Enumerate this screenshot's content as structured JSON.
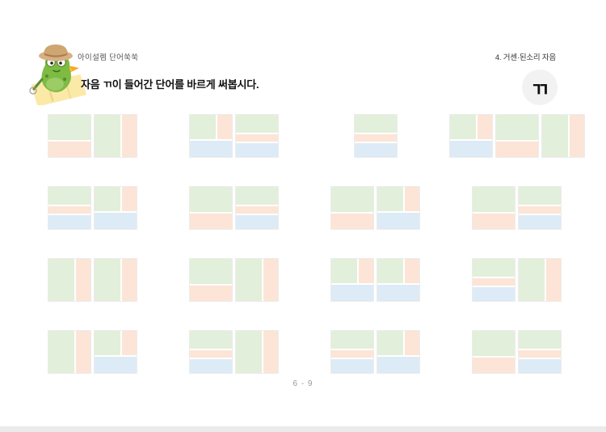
{
  "header": {
    "brand": "아이설렘 단어쑥쑥",
    "chapter": "4. 거센·된소리 자음",
    "instruction": "자음 ㄲ이 들어간 단어를 바르게 써봅시다.",
    "target_consonant": "ㄲ"
  },
  "footer": {
    "page_number": "6 - 9"
  },
  "colors": {
    "initial": "#e2efda",
    "vowel": "#fce4d6",
    "final": "#ddebf7",
    "square_border": "#ececec",
    "badge_bg": "#f2f2f2"
  },
  "grid": {
    "rows": 4,
    "cols": 4,
    "syllable_types": {
      "cv_h": "consonant top, horizontal vowel bottom",
      "cv_v": "consonant left, vertical vowel right",
      "cvc_v": "consonant left, vertical vowel right, final consonant bottom",
      "cvc_h": "consonant top, horizontal vowel middle, final consonant bottom"
    },
    "blocks": [
      {
        "row": 1,
        "col": 1,
        "syllables": [
          "cv_h",
          "cv_v"
        ]
      },
      {
        "row": 1,
        "col": 2,
        "syllables": [
          "cvc_v",
          "cvc_h"
        ]
      },
      {
        "row": 1,
        "col": 3,
        "syllables": [
          "cvc_h"
        ]
      },
      {
        "row": 1,
        "col": 4,
        "syllables": [
          "cvc_v",
          "cv_h",
          "cv_v"
        ]
      },
      {
        "row": 2,
        "col": 1,
        "syllables": [
          "cvc_h",
          "cvc_v"
        ]
      },
      {
        "row": 2,
        "col": 2,
        "syllables": [
          "cv_h",
          "cvc_h"
        ]
      },
      {
        "row": 2,
        "col": 3,
        "syllables": [
          "cv_h",
          "cvc_v"
        ]
      },
      {
        "row": 2,
        "col": 4,
        "syllables": [
          "cv_h",
          "cvc_h"
        ]
      },
      {
        "row": 3,
        "col": 1,
        "syllables": [
          "cv_v",
          "cv_v"
        ]
      },
      {
        "row": 3,
        "col": 2,
        "syllables": [
          "cv_h",
          "cv_v"
        ]
      },
      {
        "row": 3,
        "col": 3,
        "syllables": [
          "cvc_v",
          "cvc_v"
        ]
      },
      {
        "row": 3,
        "col": 4,
        "syllables": [
          "cvc_h",
          "cv_v"
        ]
      },
      {
        "row": 4,
        "col": 1,
        "syllables": [
          "cv_v",
          "cvc_v"
        ]
      },
      {
        "row": 4,
        "col": 2,
        "syllables": [
          "cvc_h",
          "cv_v"
        ]
      },
      {
        "row": 4,
        "col": 3,
        "syllables": [
          "cvc_h",
          "cvc_v"
        ]
      },
      {
        "row": 4,
        "col": 4,
        "syllables": [
          "cv_h",
          "cvc_h"
        ]
      }
    ]
  }
}
